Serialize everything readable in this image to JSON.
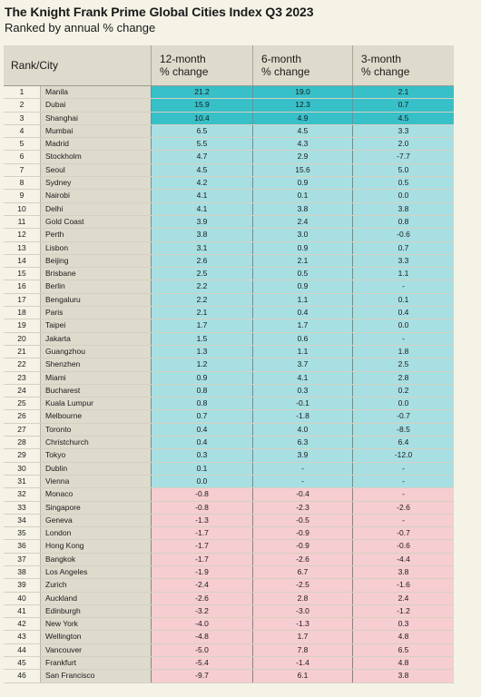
{
  "title": "The Knight Frank Prime Global Cities Index Q3 2023",
  "subtitle": "Ranked by annual % change",
  "chart_data": {
    "type": "table",
    "columns": [
      "Rank/City",
      "12-month % change",
      "6-month % change",
      "3-month % change"
    ],
    "header": {
      "rank_city": "Rank/City",
      "c12_line1": "12-month",
      "c12_line2": "% change",
      "c6_line1": "6-month",
      "c6_line2": "% change",
      "c3_line1": "3-month",
      "c3_line2": "% change"
    },
    "colors": {
      "top_three": "#37c0c8",
      "positive": "#a8dfe2",
      "negative": "#f6cdd0",
      "header": "#dedbcc",
      "background": "#f5f2e6"
    },
    "rows": [
      {
        "rank": "1",
        "city": "Manila",
        "m12": "21.2",
        "m6": "19.0",
        "m3": "2.1"
      },
      {
        "rank": "2",
        "city": "Dubai",
        "m12": "15.9",
        "m6": "12.3",
        "m3": "0.7"
      },
      {
        "rank": "3",
        "city": "Shanghai",
        "m12": "10.4",
        "m6": "4.9",
        "m3": "4.5"
      },
      {
        "rank": "4",
        "city": "Mumbai",
        "m12": "6.5",
        "m6": "4.5",
        "m3": "3.3"
      },
      {
        "rank": "5",
        "city": "Madrid",
        "m12": "5.5",
        "m6": "4.3",
        "m3": "2.0"
      },
      {
        "rank": "6",
        "city": "Stockholm",
        "m12": "4.7",
        "m6": "2.9",
        "m3": "-7.7"
      },
      {
        "rank": "7",
        "city": "Seoul",
        "m12": "4.5",
        "m6": "15.6",
        "m3": "5.0"
      },
      {
        "rank": "8",
        "city": "Sydney",
        "m12": "4.2",
        "m6": "0.9",
        "m3": "0.5"
      },
      {
        "rank": "9",
        "city": "Nairobi",
        "m12": "4.1",
        "m6": "0.1",
        "m3": "0.0"
      },
      {
        "rank": "10",
        "city": "Delhi",
        "m12": "4.1",
        "m6": "3.8",
        "m3": "3.8"
      },
      {
        "rank": "11",
        "city": "Gold Coast",
        "m12": "3.9",
        "m6": "2.4",
        "m3": "0.8"
      },
      {
        "rank": "12",
        "city": "Perth",
        "m12": "3.8",
        "m6": "3.0",
        "m3": "-0.6"
      },
      {
        "rank": "13",
        "city": "Lisbon",
        "m12": "3.1",
        "m6": "0.9",
        "m3": "0.7"
      },
      {
        "rank": "14",
        "city": "Beijing",
        "m12": "2.6",
        "m6": "2.1",
        "m3": "3.3"
      },
      {
        "rank": "15",
        "city": "Brisbane",
        "m12": "2.5",
        "m6": "0.5",
        "m3": "1.1"
      },
      {
        "rank": "16",
        "city": "Berlin",
        "m12": "2.2",
        "m6": "0.9",
        "m3": "-"
      },
      {
        "rank": "17",
        "city": "Bengaluru",
        "m12": "2.2",
        "m6": "1.1",
        "m3": "0.1"
      },
      {
        "rank": "18",
        "city": "Paris",
        "m12": "2.1",
        "m6": "0.4",
        "m3": "0.4"
      },
      {
        "rank": "19",
        "city": "Taipei",
        "m12": "1.7",
        "m6": "1.7",
        "m3": "0.0"
      },
      {
        "rank": "20",
        "city": "Jakarta",
        "m12": "1.5",
        "m6": "0.6",
        "m3": "-"
      },
      {
        "rank": "21",
        "city": "Guangzhou",
        "m12": "1.3",
        "m6": "1.1",
        "m3": "1.8"
      },
      {
        "rank": "22",
        "city": "Shenzhen",
        "m12": "1.2",
        "m6": "3.7",
        "m3": "2.5"
      },
      {
        "rank": "23",
        "city": "Miami",
        "m12": "0.9",
        "m6": "4.1",
        "m3": "2.8"
      },
      {
        "rank": "24",
        "city": "Bucharest",
        "m12": "0.8",
        "m6": "0.3",
        "m3": "0.2"
      },
      {
        "rank": "25",
        "city": "Kuala Lumpur",
        "m12": "0.8",
        "m6": "-0.1",
        "m3": "0.0"
      },
      {
        "rank": "26",
        "city": "Melbourne",
        "m12": "0.7",
        "m6": "-1.8",
        "m3": "-0.7"
      },
      {
        "rank": "27",
        "city": "Toronto",
        "m12": "0.4",
        "m6": "4.0",
        "m3": "-8.5"
      },
      {
        "rank": "28",
        "city": "Christchurch",
        "m12": "0.4",
        "m6": "6.3",
        "m3": "6.4"
      },
      {
        "rank": "29",
        "city": "Tokyo",
        "m12": "0.3",
        "m6": "3.9",
        "m3": "-12.0"
      },
      {
        "rank": "30",
        "city": "Dublin",
        "m12": "0.1",
        "m6": "-",
        "m3": "-"
      },
      {
        "rank": "31",
        "city": "Vienna",
        "m12": "0.0",
        "m6": "-",
        "m3": "-"
      },
      {
        "rank": "32",
        "city": "Monaco",
        "m12": "-0.8",
        "m6": "-0.4",
        "m3": "-"
      },
      {
        "rank": "33",
        "city": "Singapore",
        "m12": "-0.8",
        "m6": "-2.3",
        "m3": "-2.6"
      },
      {
        "rank": "34",
        "city": "Geneva",
        "m12": "-1.3",
        "m6": "-0.5",
        "m3": "-"
      },
      {
        "rank": "35",
        "city": "London",
        "m12": "-1.7",
        "m6": "-0.9",
        "m3": "-0.7"
      },
      {
        "rank": "36",
        "city": "Hong Kong",
        "m12": "-1.7",
        "m6": "-0.9",
        "m3": "-0.6"
      },
      {
        "rank": "37",
        "city": "Bangkok",
        "m12": "-1.7",
        "m6": "-2.6",
        "m3": "-4.4"
      },
      {
        "rank": "38",
        "city": "Los Angeles",
        "m12": "-1.9",
        "m6": "6.7",
        "m3": "3.8"
      },
      {
        "rank": "39",
        "city": "Zurich",
        "m12": "-2.4",
        "m6": "-2.5",
        "m3": "-1.6"
      },
      {
        "rank": "40",
        "city": "Auckland",
        "m12": "-2.6",
        "m6": "2.8",
        "m3": "2.4"
      },
      {
        "rank": "41",
        "city": "Edinburgh",
        "m12": "-3.2",
        "m6": "-3.0",
        "m3": "-1.2"
      },
      {
        "rank": "42",
        "city": "New York",
        "m12": "-4.0",
        "m6": "-1.3",
        "m3": "0.3"
      },
      {
        "rank": "43",
        "city": "Wellington",
        "m12": "-4.8",
        "m6": "1.7",
        "m3": "4.8"
      },
      {
        "rank": "44",
        "city": "Vancouver",
        "m12": "-5.0",
        "m6": "7.8",
        "m3": "6.5"
      },
      {
        "rank": "45",
        "city": "Frankfurt",
        "m12": "-5.4",
        "m6": "-1.4",
        "m3": "4.8"
      },
      {
        "rank": "46",
        "city": "San Francisco",
        "m12": "-9.7",
        "m6": "6.1",
        "m3": "3.8"
      }
    ]
  }
}
